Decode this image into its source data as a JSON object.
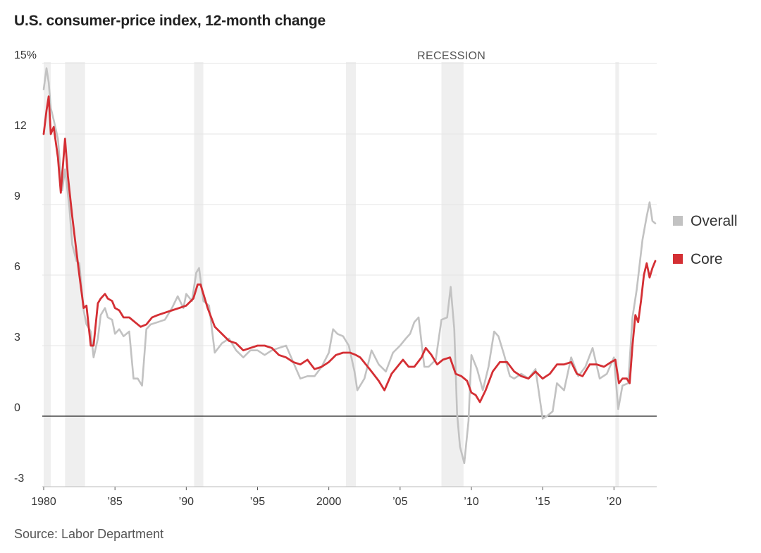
{
  "chart_data": {
    "type": "line",
    "title": "U.S. consumer-price index, 12-month change",
    "source": "Source: Labor Department",
    "xlabel": "",
    "ylabel": "",
    "xlim": [
      1980,
      2023
    ],
    "ylim": [
      -3,
      15
    ],
    "yticks": [
      {
        "value": 15,
        "label": "15%"
      },
      {
        "value": 12,
        "label": "12"
      },
      {
        "value": 9,
        "label": "9"
      },
      {
        "value": 6,
        "label": "6"
      },
      {
        "value": 3,
        "label": "3"
      },
      {
        "value": 0,
        "label": "0"
      },
      {
        "value": -3,
        "label": "-3"
      }
    ],
    "xticks": [
      {
        "value": 1980,
        "label": "1980"
      },
      {
        "value": 1985,
        "label": "’85"
      },
      {
        "value": 1990,
        "label": "’90"
      },
      {
        "value": 1995,
        "label": "’95"
      },
      {
        "value": 2000,
        "label": "2000"
      },
      {
        "value": 2005,
        "label": "’05"
      },
      {
        "value": 2010,
        "label": "’10"
      },
      {
        "value": 2015,
        "label": "’15"
      },
      {
        "value": 2020,
        "label": "’20"
      }
    ],
    "recession_label": "RECESSION",
    "recessions": [
      [
        1980.0,
        1980.5
      ],
      [
        1981.5,
        1982.9
      ],
      [
        1990.55,
        1991.2
      ],
      [
        2001.2,
        2001.9
      ],
      [
        2007.9,
        2009.45
      ],
      [
        2020.1,
        2020.35
      ]
    ],
    "grid": true,
    "legend": "right",
    "colors": {
      "overall": "#c2c2c2",
      "core": "#d42f34",
      "grid": "#e6e6e6",
      "zero": "#222222",
      "recession": "#efefef"
    },
    "series": [
      {
        "name": "Overall",
        "color": "#c2c2c2",
        "x": [
          1980.0,
          1980.2,
          1980.35,
          1980.5,
          1980.7,
          1981.0,
          1981.3,
          1981.5,
          1981.8,
          1982.0,
          1982.3,
          1982.5,
          1982.8,
          1983.0,
          1983.3,
          1983.5,
          1983.8,
          1984.0,
          1984.3,
          1984.5,
          1984.8,
          1985.0,
          1985.3,
          1985.6,
          1986.0,
          1986.3,
          1986.6,
          1986.9,
          1987.2,
          1987.5,
          1988.0,
          1988.5,
          1989.0,
          1989.4,
          1989.8,
          1990.0,
          1990.4,
          1990.7,
          1990.9,
          1991.2,
          1991.6,
          1992.0,
          1992.5,
          1993.0,
          1993.5,
          1994.0,
          1994.5,
          1995.0,
          1995.5,
          1996.0,
          1996.5,
          1997.0,
          1997.5,
          1998.0,
          1998.5,
          1999.0,
          1999.5,
          2000.0,
          2000.3,
          2000.6,
          2001.0,
          2001.4,
          2001.8,
          2002.0,
          2002.5,
          2003.0,
          2003.5,
          2004.0,
          2004.5,
          2005.0,
          2005.4,
          2005.7,
          2006.0,
          2006.3,
          2006.7,
          2007.0,
          2007.5,
          2007.9,
          2008.3,
          2008.55,
          2008.8,
          2009.0,
          2009.2,
          2009.5,
          2009.8,
          2010.0,
          2010.4,
          2010.8,
          2011.2,
          2011.6,
          2011.9,
          2012.3,
          2012.7,
          2013.0,
          2013.5,
          2014.0,
          2014.5,
          2015.0,
          2015.3,
          2015.7,
          2016.0,
          2016.5,
          2017.0,
          2017.5,
          2018.0,
          2018.5,
          2019.0,
          2019.5,
          2020.0,
          2020.3,
          2020.6,
          2021.0,
          2021.3,
          2021.6,
          2022.0,
          2022.3,
          2022.5,
          2022.7,
          2022.9
        ],
        "values": [
          13.9,
          14.8,
          14.2,
          13.1,
          12.6,
          11.8,
          9.6,
          10.5,
          8.9,
          7.3,
          6.6,
          6.5,
          4.5,
          3.9,
          3.6,
          2.5,
          3.3,
          4.3,
          4.6,
          4.2,
          4.1,
          3.5,
          3.7,
          3.4,
          3.6,
          1.6,
          1.6,
          1.3,
          3.7,
          3.9,
          4.0,
          4.1,
          4.6,
          5.1,
          4.6,
          5.2,
          4.9,
          6.1,
          6.3,
          4.9,
          4.7,
          2.7,
          3.1,
          3.3,
          2.8,
          2.5,
          2.8,
          2.8,
          2.6,
          2.8,
          2.9,
          3.0,
          2.3,
          1.6,
          1.7,
          1.7,
          2.1,
          2.7,
          3.7,
          3.5,
          3.4,
          3.0,
          1.9,
          1.1,
          1.6,
          2.8,
          2.2,
          1.9,
          2.7,
          3.0,
          3.3,
          3.5,
          4.0,
          4.2,
          2.1,
          2.1,
          2.4,
          4.1,
          4.2,
          5.5,
          3.7,
          0.1,
          -1.3,
          -2.0,
          -0.2,
          2.6,
          2.0,
          1.1,
          2.1,
          3.6,
          3.4,
          2.6,
          1.7,
          1.6,
          1.8,
          1.6,
          2.0,
          -0.1,
          0.0,
          0.2,
          1.4,
          1.1,
          2.5,
          1.7,
          2.1,
          2.9,
          1.6,
          1.8,
          2.5,
          0.3,
          1.3,
          1.4,
          4.2,
          5.4,
          7.5,
          8.5,
          9.1,
          8.3,
          8.2
        ]
      },
      {
        "name": "Core",
        "color": "#d42f34",
        "x": [
          1980.0,
          1980.2,
          1980.35,
          1980.5,
          1980.7,
          1981.0,
          1981.2,
          1981.5,
          1981.7,
          1982.0,
          1982.3,
          1982.5,
          1982.8,
          1983.0,
          1983.3,
          1983.5,
          1983.8,
          1984.0,
          1984.3,
          1984.5,
          1984.8,
          1985.0,
          1985.3,
          1985.6,
          1986.0,
          1986.4,
          1986.8,
          1987.2,
          1987.6,
          1988.0,
          1988.5,
          1989.0,
          1989.5,
          1990.0,
          1990.5,
          1990.8,
          1991.0,
          1991.5,
          1992.0,
          1992.5,
          1993.0,
          1993.5,
          1994.0,
          1994.5,
          1995.0,
          1995.5,
          1996.0,
          1996.5,
          1997.0,
          1997.5,
          1998.0,
          1998.5,
          1999.0,
          1999.5,
          2000.0,
          2000.5,
          2001.0,
          2001.5,
          2001.9,
          2002.2,
          2002.6,
          2003.0,
          2003.5,
          2003.9,
          2004.4,
          2004.8,
          2005.2,
          2005.6,
          2006.0,
          2006.5,
          2006.8,
          2007.2,
          2007.6,
          2008.0,
          2008.5,
          2008.9,
          2009.3,
          2009.7,
          2010.0,
          2010.3,
          2010.6,
          2011.0,
          2011.5,
          2012.0,
          2012.5,
          2013.0,
          2013.5,
          2014.0,
          2014.5,
          2015.0,
          2015.5,
          2016.0,
          2016.5,
          2017.0,
          2017.4,
          2017.8,
          2018.3,
          2018.8,
          2019.3,
          2019.8,
          2020.1,
          2020.35,
          2020.6,
          2020.9,
          2021.1,
          2021.3,
          2021.5,
          2021.7,
          2021.9,
          2022.1,
          2022.3,
          2022.5,
          2022.7,
          2022.9
        ],
        "values": [
          12.0,
          13.0,
          13.6,
          12.0,
          12.3,
          11.0,
          9.5,
          11.8,
          10.2,
          8.5,
          7.0,
          6.0,
          4.6,
          4.7,
          3.0,
          3.0,
          4.8,
          5.0,
          5.2,
          5.0,
          4.9,
          4.6,
          4.5,
          4.2,
          4.2,
          4.0,
          3.8,
          3.9,
          4.2,
          4.3,
          4.4,
          4.5,
          4.6,
          4.7,
          5.0,
          5.6,
          5.6,
          4.6,
          3.8,
          3.5,
          3.2,
          3.1,
          2.8,
          2.9,
          3.0,
          3.0,
          2.9,
          2.6,
          2.5,
          2.3,
          2.2,
          2.4,
          2.0,
          2.1,
          2.3,
          2.6,
          2.7,
          2.7,
          2.6,
          2.5,
          2.2,
          1.9,
          1.5,
          1.1,
          1.8,
          2.1,
          2.4,
          2.1,
          2.1,
          2.5,
          2.9,
          2.6,
          2.2,
          2.4,
          2.5,
          1.8,
          1.7,
          1.5,
          1.0,
          0.9,
          0.6,
          1.1,
          1.9,
          2.3,
          2.3,
          1.9,
          1.7,
          1.6,
          1.9,
          1.6,
          1.8,
          2.2,
          2.2,
          2.3,
          1.8,
          1.7,
          2.2,
          2.2,
          2.1,
          2.3,
          2.4,
          1.4,
          1.6,
          1.6,
          1.4,
          3.0,
          4.3,
          4.0,
          4.9,
          6.0,
          6.5,
          5.9,
          6.3,
          6.6
        ]
      }
    ]
  }
}
